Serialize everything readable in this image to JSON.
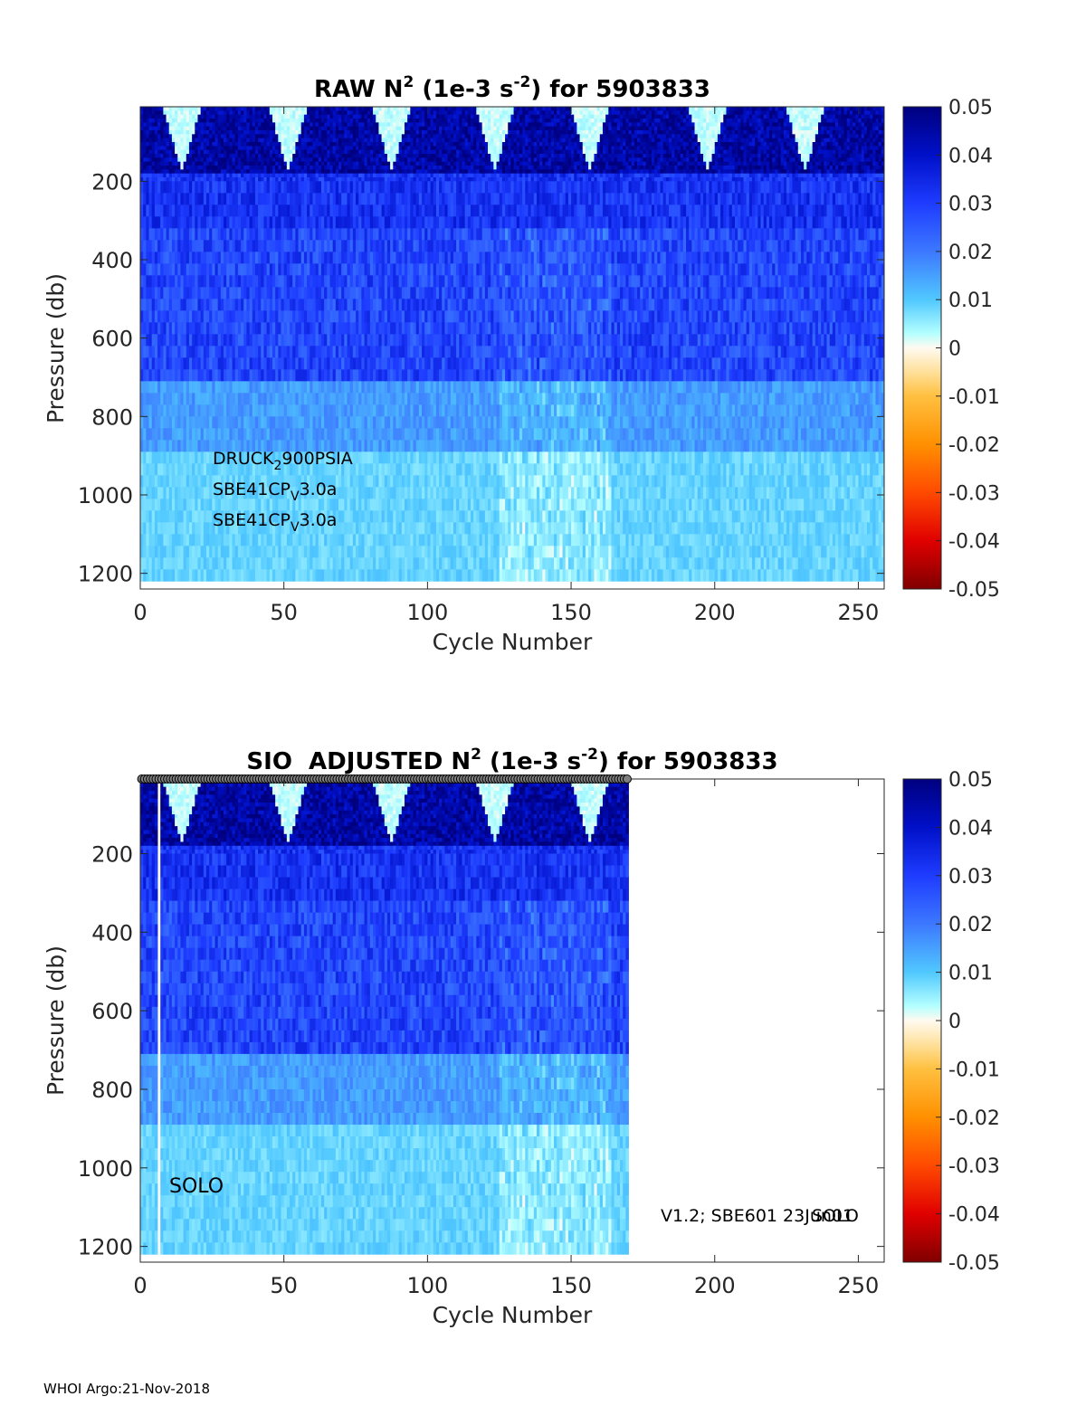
{
  "footer": "WHOI Argo:21-Nov-2018",
  "chart_data": [
    {
      "type": "heatmap",
      "title": {
        "pre": "RAW N",
        "sup1": "2",
        "mid": " (1e-3 s",
        "sup2": "-2",
        "post": ") for 5903833"
      },
      "xlabel": "Cycle Number",
      "ylabel": "Pressure (db)",
      "xlim": [
        0,
        259
      ],
      "ylim": [
        1240,
        10
      ],
      "xticks": [
        0,
        50,
        100,
        150,
        200,
        250
      ],
      "yticks": [
        200,
        400,
        600,
        800,
        1000,
        1200
      ],
      "max_cycle": 259,
      "colorbar": {
        "min": -0.05,
        "max": 0.05,
        "ticks": [
          0.05,
          0.04,
          0.03,
          0.02,
          0.01,
          0,
          -0.01,
          -0.02,
          -0.03,
          -0.04,
          -0.05
        ]
      },
      "annotations": {
        "sensor_lines": [
          {
            "base": "DRUCK",
            "sub": "2",
            "rest": "900PSIA"
          },
          {
            "base": "SBE41CP",
            "sub": "V",
            "rest": "3.0a"
          },
          {
            "base": "SBE41CP",
            "sub": "V",
            "rest": "3.0a"
          }
        ]
      },
      "pattern": "Strong stratification (0.04-0.05) in top ~150 db, with near-zero mixed layers in winter cycles; 0.02-0.035 between 200-700 db; 0.005-0.015 below 700 db",
      "winter_mixed_layer_cycles": [
        15,
        52,
        88,
        124,
        157,
        198,
        232
      ]
    },
    {
      "type": "heatmap",
      "title": {
        "pre": "SIO  ADJUSTED N",
        "sup1": "2",
        "mid": " (1e-3 s",
        "sup2": "-2",
        "post": ") for 5903833"
      },
      "xlabel": "Cycle Number",
      "ylabel": "Pressure (db)",
      "xlim": [
        0,
        259
      ],
      "ylim": [
        1240,
        10
      ],
      "xticks": [
        0,
        50,
        100,
        150,
        200,
        250
      ],
      "yticks": [
        200,
        400,
        600,
        800,
        1000,
        1200
      ],
      "max_cycle": 170,
      "gap_cycle": 7,
      "colorbar": {
        "min": -0.05,
        "max": 0.05,
        "ticks": [
          0.05,
          0.04,
          0.03,
          0.02,
          0.01,
          0,
          -0.01,
          -0.02,
          -0.03,
          -0.04,
          -0.05
        ]
      },
      "annotations": {
        "float_type": "SOLO",
        "version": "V1.2; SBE601 23Jun01",
        "version_overlap": "SOLO"
      },
      "qc_marker_cycles_range": [
        1,
        170
      ],
      "pattern": "Same as raw for cycles 1-170; blank beyond cycle 170"
    }
  ]
}
